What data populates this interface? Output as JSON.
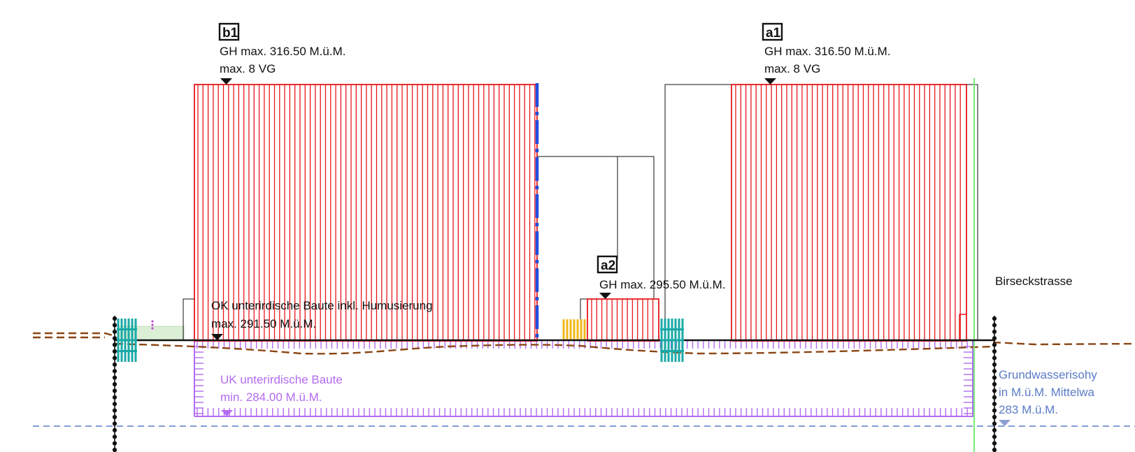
{
  "buildings": {
    "b1": {
      "tag": "b1",
      "height_label": "GH max. 316.50 M.ü.M.",
      "floors_label": "max. 8 VG"
    },
    "a1": {
      "tag": "a1",
      "height_label": "GH max. 316.50 M.ü.M.",
      "floors_label": "max. 8 VG"
    },
    "a2": {
      "tag": "a2",
      "height_label": "GH max. 295.50 M.ü.M."
    }
  },
  "underground": {
    "top_label": "OK unterirdische Baute inkl. Humusierung",
    "top_value": "max. 291.50 M.ü.M.",
    "bottom_label": "UK unterirdische Baute",
    "bottom_value": "min. 284.00 M.ü.M."
  },
  "street": {
    "label": "Birseckstrasse"
  },
  "groundwater": {
    "line1": "Grundwasserisohy",
    "line2": "in M.ü.M. Mittelwa",
    "line3": "283 M.ü.M."
  },
  "colors": {
    "building_hatch": "#e8171b",
    "underground": "#b36bf0",
    "terrain": "#8b4513",
    "groundwater": "#5b7bc6",
    "boundary": "#111111",
    "facade_blue": "#1f4fe0",
    "tree_teal": "#1aa9a6",
    "shrub_yellow": "#f2b81a",
    "plot_green": "#7cec7c"
  }
}
